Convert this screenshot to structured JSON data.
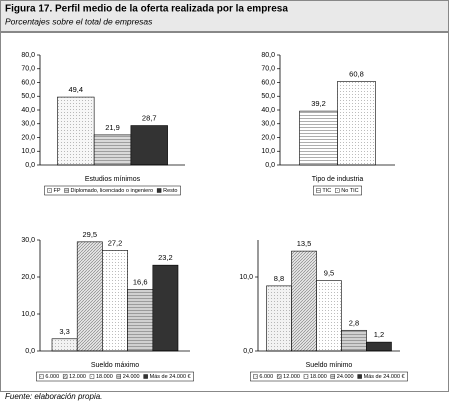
{
  "figure": {
    "title": "Figura 17. Perfil medio de la oferta realizada por la empresa",
    "subtitle": "Porcentajes sobre el total de empresas",
    "source": "Fuente: elaboración propia."
  },
  "chart_data": [
    {
      "type": "bar",
      "xlabel": "Estudios mínimos",
      "ylim": [
        0,
        80
      ],
      "yticks": [
        {
          "value": 0,
          "label": "0,0"
        },
        {
          "value": 10,
          "label": "10,0"
        },
        {
          "value": 20,
          "label": "20,0"
        },
        {
          "value": 30,
          "label": "30,0"
        },
        {
          "value": 40,
          "label": "40,0"
        },
        {
          "value": 50,
          "label": "50,0"
        },
        {
          "value": 60,
          "label": "60,0"
        },
        {
          "value": 70,
          "label": "70,0"
        },
        {
          "value": 80,
          "label": "80,0"
        }
      ],
      "series": [
        {
          "name": "FP",
          "color": "#f7f7f7",
          "pattern": "dots",
          "values": [
            49.4
          ],
          "value_labels": [
            "49,4"
          ]
        },
        {
          "name": "Diplomado, licenciado o ingeniero",
          "color": "#d9d9d9",
          "pattern": "hlines",
          "values": [
            21.9
          ],
          "value_labels": [
            "21,9"
          ]
        },
        {
          "name": "Resto",
          "color": "#333333",
          "pattern": "solid",
          "values": [
            28.7
          ],
          "value_labels": [
            "28,7"
          ]
        }
      ]
    },
    {
      "type": "bar",
      "xlabel": "Tipo de industria",
      "ylim": [
        0,
        80
      ],
      "yticks": [
        {
          "value": 0,
          "label": "0,0"
        },
        {
          "value": 10,
          "label": "10,0"
        },
        {
          "value": 20,
          "label": "20,0"
        },
        {
          "value": 30,
          "label": "30,0"
        },
        {
          "value": 40,
          "label": "40,0"
        },
        {
          "value": 50,
          "label": "50,0"
        },
        {
          "value": 60,
          "label": "60,0"
        },
        {
          "value": 70,
          "label": "70,0"
        },
        {
          "value": 80,
          "label": "80,0"
        }
      ],
      "series": [
        {
          "name": "TIC",
          "color": "#ffffff",
          "pattern": "hlines",
          "values": [
            39.2
          ],
          "value_labels": [
            "39,2"
          ]
        },
        {
          "name": "No TIC",
          "color": "#ffffff",
          "pattern": "dots",
          "values": [
            60.8
          ],
          "value_labels": [
            "60,8"
          ]
        }
      ]
    },
    {
      "type": "bar",
      "xlabel": "Sueldo máximo",
      "ylim": [
        0,
        30
      ],
      "yticks": [
        {
          "value": 0,
          "label": "0,0"
        },
        {
          "value": 10,
          "label": "10,0"
        },
        {
          "value": 20,
          "label": "20,0"
        },
        {
          "value": 30,
          "label": "30,0"
        }
      ],
      "series": [
        {
          "name": "6.000",
          "color": "#f2f2f2",
          "pattern": "dots",
          "values": [
            3.3
          ],
          "value_labels": [
            "3,3"
          ]
        },
        {
          "name": "12.000",
          "color": "#e6e6e6",
          "pattern": "diag",
          "values": [
            29.5
          ],
          "value_labels": [
            "29,5"
          ]
        },
        {
          "name": "18.000",
          "color": "#ffffff",
          "pattern": "dots",
          "values": [
            27.2
          ],
          "value_labels": [
            "27,2"
          ]
        },
        {
          "name": "24.000",
          "color": "#d0d0d0",
          "pattern": "hlines",
          "values": [
            16.6
          ],
          "value_labels": [
            "16,6"
          ]
        },
        {
          "name": "Más de 24.000 €",
          "color": "#333333",
          "pattern": "solid",
          "values": [
            23.2
          ],
          "value_labels": [
            "23,2"
          ]
        }
      ]
    },
    {
      "type": "bar",
      "xlabel": "Sueldo mínimo",
      "ylim": [
        0,
        15
      ],
      "yticks": [
        {
          "value": 0,
          "label": "0,0"
        },
        {
          "value": 10,
          "label": "10,0"
        }
      ],
      "series": [
        {
          "name": "6.000",
          "color": "#f2f2f2",
          "pattern": "dots",
          "values": [
            8.8
          ],
          "value_labels": [
            "8,8"
          ]
        },
        {
          "name": "12.000",
          "color": "#e6e6e6",
          "pattern": "diag",
          "values": [
            13.5
          ],
          "value_labels": [
            "13,5"
          ]
        },
        {
          "name": "18.000",
          "color": "#ffffff",
          "pattern": "dots",
          "values": [
            9.5
          ],
          "value_labels": [
            "9,5"
          ]
        },
        {
          "name": "24.000",
          "color": "#d0d0d0",
          "pattern": "hlines",
          "values": [
            2.8
          ],
          "value_labels": [
            "2,8"
          ]
        },
        {
          "name": "Más de 24.000 €",
          "color": "#333333",
          "pattern": "solid",
          "values": [
            1.2
          ],
          "value_labels": [
            "1,2"
          ]
        }
      ]
    }
  ]
}
